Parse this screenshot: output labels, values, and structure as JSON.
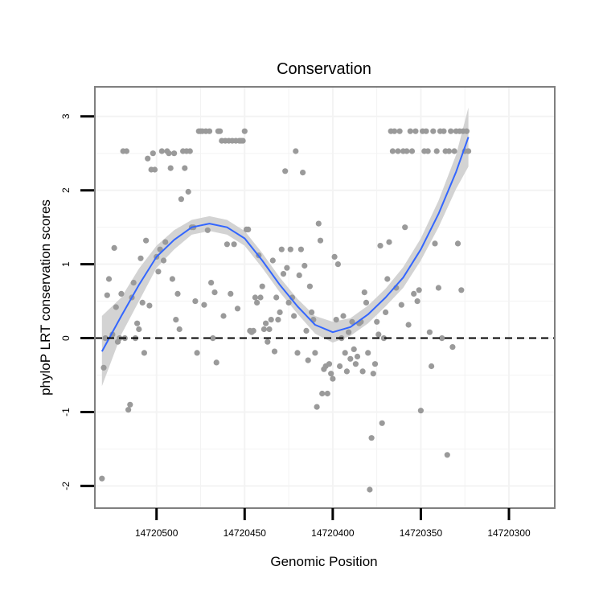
{
  "chart_data": {
    "type": "scatter",
    "title": "Conservation",
    "xlabel": "Genomic Position",
    "ylabel": "phyloP LRT conservation scores",
    "x_reversed": true,
    "xlim": [
      14720535,
      14720274
    ],
    "ylim": [
      -2.3,
      3.4
    ],
    "x_ticks": [
      14720500,
      14720450,
      14720400,
      14720350,
      14720300
    ],
    "y_ticks": [
      -2,
      -1,
      0,
      1,
      2,
      3
    ],
    "reference_line": {
      "y": 0,
      "style": "dashed",
      "color": "#000000"
    },
    "grid": true,
    "colors": {
      "points": "#9a9a9a",
      "smooth": "#3366ff",
      "band": "#d3d3d3",
      "panel_border": "#7f7f7f",
      "grid": "#f3f3f3"
    },
    "points": [
      [
        14720531,
        -1.9
      ],
      [
        14720530,
        -0.4
      ],
      [
        14720529,
        0.0
      ],
      [
        14720528,
        0.58
      ],
      [
        14720527,
        0.8
      ],
      [
        14720525,
        0.05
      ],
      [
        14720524,
        1.22
      ],
      [
        14720523,
        0.42
      ],
      [
        14720522,
        -0.05
      ],
      [
        14720521,
        0.0
      ],
      [
        14720520,
        0.6
      ],
      [
        14720519,
        2.53
      ],
      [
        14720518,
        0.0
      ],
      [
        14720517,
        2.53
      ],
      [
        14720516,
        -0.97
      ],
      [
        14720515,
        -0.9
      ],
      [
        14720514,
        0.55
      ],
      [
        14720513,
        0.75
      ],
      [
        14720512,
        0.0
      ],
      [
        14720511,
        0.2
      ],
      [
        14720510,
        0.12
      ],
      [
        14720509,
        1.08
      ],
      [
        14720508,
        0.48
      ],
      [
        14720507,
        -0.2
      ],
      [
        14720506,
        1.32
      ],
      [
        14720505,
        2.43
      ],
      [
        14720504,
        0.44
      ],
      [
        14720503,
        2.28
      ],
      [
        14720502,
        2.5
      ],
      [
        14720501,
        2.28
      ],
      [
        14720500,
        1.1
      ],
      [
        14720499,
        0.9
      ],
      [
        14720498,
        1.2
      ],
      [
        14720497,
        2.53
      ],
      [
        14720496,
        1.05
      ],
      [
        14720495,
        1.3
      ],
      [
        14720494,
        2.53
      ],
      [
        14720493,
        2.5
      ],
      [
        14720492,
        2.3
      ],
      [
        14720491,
        0.8
      ],
      [
        14720490,
        2.5
      ],
      [
        14720489,
        0.25
      ],
      [
        14720488,
        0.6
      ],
      [
        14720487,
        0.12
      ],
      [
        14720486,
        1.88
      ],
      [
        14720485,
        2.53
      ],
      [
        14720484,
        2.3
      ],
      [
        14720483,
        2.53
      ],
      [
        14720482,
        1.98
      ],
      [
        14720481,
        2.53
      ],
      [
        14720480,
        1.5
      ],
      [
        14720479,
        1.5
      ],
      [
        14720478,
        0.5
      ],
      [
        14720477,
        -0.2
      ],
      [
        14720476,
        2.8
      ],
      [
        14720475,
        2.8
      ],
      [
        14720474,
        2.8
      ],
      [
        14720473,
        0.45
      ],
      [
        14720472,
        2.8
      ],
      [
        14720471,
        1.46
      ],
      [
        14720470,
        2.8
      ],
      [
        14720469,
        0.75
      ],
      [
        14720468,
        0.0
      ],
      [
        14720467,
        0.62
      ],
      [
        14720466,
        -0.33
      ],
      [
        14720465,
        2.8
      ],
      [
        14720464,
        2.8
      ],
      [
        14720463,
        2.67
      ],
      [
        14720462,
        0.3
      ],
      [
        14720461,
        2.67
      ],
      [
        14720460,
        1.27
      ],
      [
        14720459,
        2.67
      ],
      [
        14720458,
        0.6
      ],
      [
        14720457,
        2.67
      ],
      [
        14720456,
        1.27
      ],
      [
        14720455,
        2.67
      ],
      [
        14720454,
        0.4
      ],
      [
        14720453,
        2.67
      ],
      [
        14720452,
        2.67
      ],
      [
        14720451,
        2.67
      ],
      [
        14720450,
        2.8
      ],
      [
        14720449,
        1.47
      ],
      [
        14720448,
        1.47
      ],
      [
        14720447,
        0.1
      ],
      [
        14720446,
        0.08
      ],
      [
        14720445,
        0.1
      ],
      [
        14720444,
        0.55
      ],
      [
        14720443,
        0.48
      ],
      [
        14720442,
        1.12
      ],
      [
        14720441,
        0.55
      ],
      [
        14720440,
        0.7
      ],
      [
        14720439,
        0.12
      ],
      [
        14720438,
        0.2
      ],
      [
        14720437,
        -0.05
      ],
      [
        14720436,
        0.12
      ],
      [
        14720435,
        0.25
      ],
      [
        14720434,
        1.05
      ],
      [
        14720433,
        -0.18
      ],
      [
        14720432,
        0.55
      ],
      [
        14720431,
        0.25
      ],
      [
        14720430,
        0.35
      ],
      [
        14720429,
        1.2
      ],
      [
        14720428,
        0.87
      ],
      [
        14720427,
        2.26
      ],
      [
        14720426,
        0.95
      ],
      [
        14720425,
        0.48
      ],
      [
        14720424,
        1.2
      ],
      [
        14720423,
        0.55
      ],
      [
        14720422,
        0.3
      ],
      [
        14720421,
        2.53
      ],
      [
        14720420,
        -0.2
      ],
      [
        14720419,
        0.85
      ],
      [
        14720418,
        1.2
      ],
      [
        14720417,
        2.24
      ],
      [
        14720416,
        0.98
      ],
      [
        14720415,
        0.1
      ],
      [
        14720414,
        -0.3
      ],
      [
        14720413,
        0.7
      ],
      [
        14720412,
        0.35
      ],
      [
        14720411,
        0.25
      ],
      [
        14720410,
        -0.2
      ],
      [
        14720409,
        -0.93
      ],
      [
        14720408,
        1.55
      ],
      [
        14720407,
        1.32
      ],
      [
        14720406,
        -0.75
      ],
      [
        14720405,
        -0.42
      ],
      [
        14720404,
        -0.38
      ],
      [
        14720403,
        -0.75
      ],
      [
        14720402,
        -0.35
      ],
      [
        14720401,
        -0.48
      ],
      [
        14720400,
        -0.55
      ],
      [
        14720399,
        1.1
      ],
      [
        14720398,
        0.25
      ],
      [
        14720397,
        1.0
      ],
      [
        14720396,
        -0.38
      ],
      [
        14720395,
        0.0
      ],
      [
        14720394,
        0.3
      ],
      [
        14720393,
        -0.2
      ],
      [
        14720392,
        -0.45
      ],
      [
        14720391,
        0.08
      ],
      [
        14720390,
        -0.28
      ],
      [
        14720389,
        0.22
      ],
      [
        14720388,
        -0.15
      ],
      [
        14720387,
        -0.35
      ],
      [
        14720386,
        -0.25
      ],
      [
        14720385,
        0.2
      ],
      [
        14720384,
        0.22
      ],
      [
        14720383,
        -0.45
      ],
      [
        14720382,
        0.62
      ],
      [
        14720381,
        0.48
      ],
      [
        14720380,
        -0.2
      ],
      [
        14720379,
        -2.05
      ],
      [
        14720378,
        -1.35
      ],
      [
        14720377,
        -0.48
      ],
      [
        14720376,
        -0.35
      ],
      [
        14720375,
        0.22
      ],
      [
        14720374,
        0.05
      ],
      [
        14720373,
        1.25
      ],
      [
        14720372,
        -1.15
      ],
      [
        14720371,
        0.0
      ],
      [
        14720370,
        0.35
      ],
      [
        14720369,
        0.8
      ],
      [
        14720368,
        1.3
      ],
      [
        14720367,
        2.8
      ],
      [
        14720366,
        2.53
      ],
      [
        14720365,
        2.8
      ],
      [
        14720364,
        0.68
      ],
      [
        14720363,
        2.53
      ],
      [
        14720362,
        2.8
      ],
      [
        14720361,
        0.45
      ],
      [
        14720360,
        2.53
      ],
      [
        14720359,
        1.5
      ],
      [
        14720358,
        2.53
      ],
      [
        14720357,
        0.18
      ],
      [
        14720356,
        2.8
      ],
      [
        14720355,
        2.53
      ],
      [
        14720354,
        0.6
      ],
      [
        14720353,
        2.8
      ],
      [
        14720352,
        0.5
      ],
      [
        14720351,
        0.65
      ],
      [
        14720350,
        -0.98
      ],
      [
        14720349,
        2.8
      ],
      [
        14720348,
        2.53
      ],
      [
        14720347,
        2.8
      ],
      [
        14720346,
        2.53
      ],
      [
        14720345,
        0.08
      ],
      [
        14720344,
        -0.38
      ],
      [
        14720343,
        2.8
      ],
      [
        14720342,
        1.28
      ],
      [
        14720341,
        2.53
      ],
      [
        14720340,
        0.68
      ],
      [
        14720339,
        2.8
      ],
      [
        14720338,
        0.0
      ],
      [
        14720337,
        2.8
      ],
      [
        14720336,
        2.53
      ],
      [
        14720335,
        -1.58
      ],
      [
        14720334,
        2.53
      ],
      [
        14720333,
        2.8
      ],
      [
        14720332,
        -0.12
      ],
      [
        14720331,
        2.53
      ],
      [
        14720330,
        2.8
      ],
      [
        14720329,
        1.28
      ],
      [
        14720328,
        2.8
      ],
      [
        14720327,
        0.65
      ],
      [
        14720326,
        2.8
      ],
      [
        14720325,
        2.53
      ],
      [
        14720324,
        2.8
      ],
      [
        14720323,
        2.53
      ]
    ],
    "smooth": {
      "method": "loess",
      "x": [
        14720531,
        14720520,
        14720510,
        14720500,
        14720490,
        14720480,
        14720470,
        14720460,
        14720450,
        14720440,
        14720430,
        14720420,
        14720410,
        14720400,
        14720390,
        14720380,
        14720370,
        14720360,
        14720350,
        14720340,
        14720330,
        14720323
      ],
      "y": [
        -0.18,
        0.3,
        0.72,
        1.1,
        1.33,
        1.5,
        1.55,
        1.5,
        1.35,
        1.05,
        0.72,
        0.43,
        0.18,
        0.08,
        0.15,
        0.32,
        0.55,
        0.82,
        1.2,
        1.68,
        2.25,
        2.72
      ],
      "lower": [
        -0.65,
        0.05,
        0.5,
        0.95,
        1.2,
        1.4,
        1.45,
        1.4,
        1.25,
        0.95,
        0.62,
        0.33,
        0.06,
        -0.06,
        0.03,
        0.2,
        0.43,
        0.68,
        1.05,
        1.5,
        2.02,
        2.32
      ],
      "upper": [
        0.3,
        0.55,
        0.94,
        1.25,
        1.46,
        1.6,
        1.65,
        1.6,
        1.45,
        1.15,
        0.82,
        0.53,
        0.3,
        0.22,
        0.27,
        0.44,
        0.67,
        0.96,
        1.35,
        1.86,
        2.48,
        3.12
      ]
    }
  }
}
